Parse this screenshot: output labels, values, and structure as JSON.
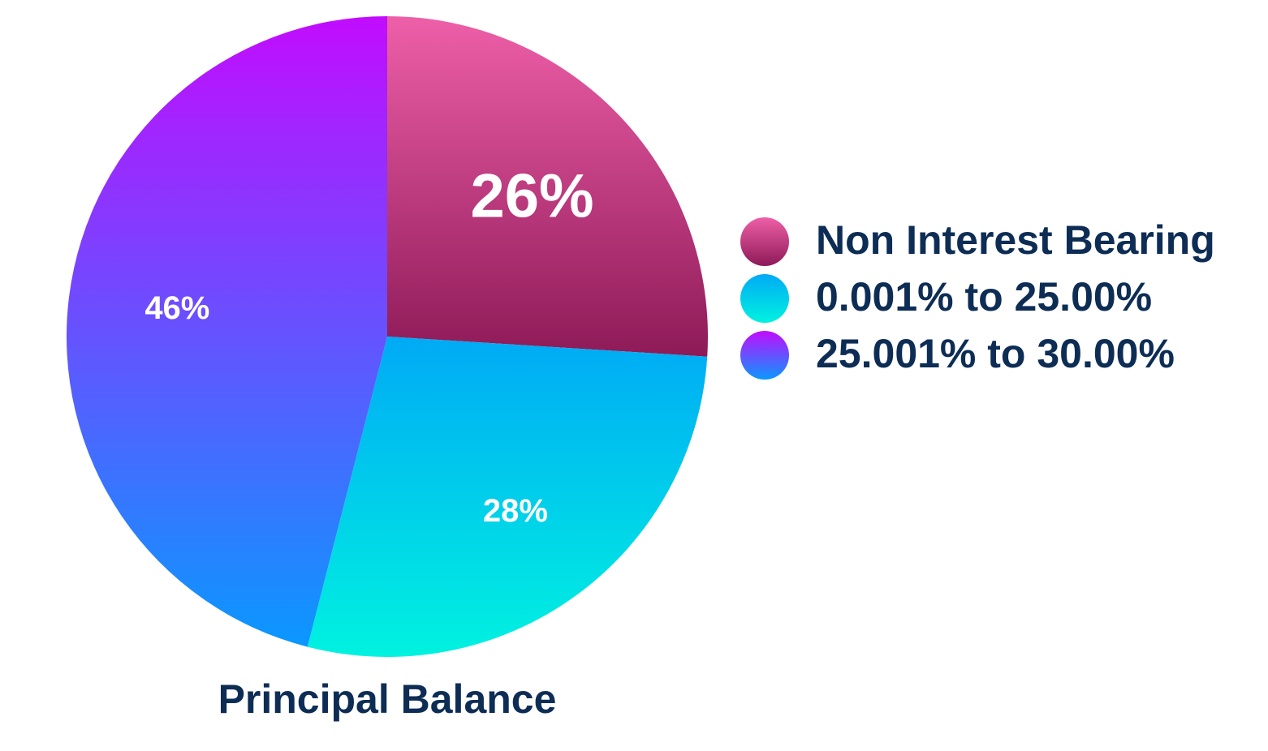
{
  "chart_data": {
    "type": "pie",
    "title": "Principal Balance",
    "categories": [
      "Non Interest Bearing",
      "0.001% to 25.00%",
      "25.001% to 30.00%"
    ],
    "values": [
      26,
      28,
      46
    ],
    "value_labels": [
      "26%",
      "28%",
      "46%"
    ],
    "colors": [
      [
        "#ee5fa8",
        "#8e1a58"
      ],
      [
        "#00aaf5",
        "#00f2e0"
      ],
      [
        "#c20cff",
        "#0a98ff"
      ]
    ],
    "legend": "right"
  }
}
